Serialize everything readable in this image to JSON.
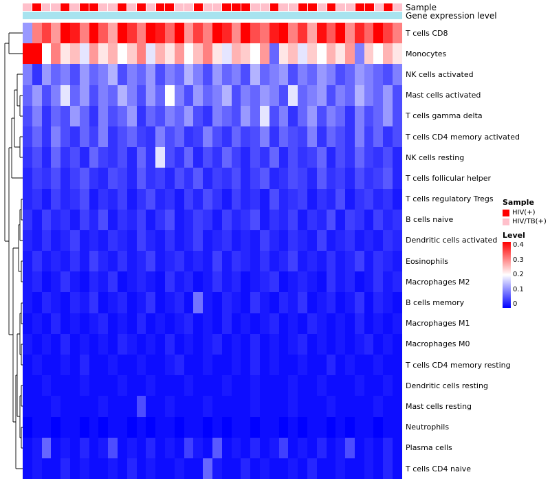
{
  "annotations": {
    "sample_label": "Sample",
    "gene_label": "Gene expression level",
    "gene_color": "#A8E3EF",
    "sample_groups": [
      "HIV/TB(+)",
      "HIV(+)",
      "HIV/TB(+)",
      "HIV/TB(+)",
      "HIV(+)",
      "HIV/TB(+)",
      "HIV(+)",
      "HIV(+)",
      "HIV/TB(+)",
      "HIV/TB(+)",
      "HIV(+)",
      "HIV/TB(+)",
      "HIV(+)",
      "HIV/TB(+)",
      "HIV(+)",
      "HIV(+)",
      "HIV/TB(+)",
      "HIV/TB(+)",
      "HIV(+)",
      "HIV/TB(+)",
      "HIV/TB(+)",
      "HIV(+)",
      "HIV(+)",
      "HIV(+)",
      "HIV/TB(+)",
      "HIV/TB(+)",
      "HIV(+)",
      "HIV/TB(+)",
      "HIV/TB(+)",
      "HIV(+)",
      "HIV(+)",
      "HIV/TB(+)",
      "HIV(+)",
      "HIV/TB(+)",
      "HIV/TB(+)",
      "HIV(+)",
      "HIV(+)",
      "HIV/TB(+)",
      "HIV(+)",
      "HIV/TB(+)"
    ]
  },
  "legend": {
    "sample_title": "Sample",
    "items": [
      {
        "label": "HIV(+)",
        "color": "#FF0000"
      },
      {
        "label": "HIV/TB(+)",
        "color": "#FFC0CB"
      }
    ],
    "level_title": "Level",
    "ticks": [
      "0.4",
      "0.3",
      "0.2",
      "0.1",
      "0"
    ]
  },
  "chart_data": {
    "type": "heatmap",
    "title": "",
    "xlabel": "",
    "ylabel": "",
    "n_columns": 40,
    "legend_position": "right",
    "grid": false,
    "colorscale": {
      "min": 0,
      "mid": 0.2,
      "max": 0.4,
      "min_color": "#0000FF",
      "mid_color": "#FFFFFF",
      "max_color": "#FF0000"
    },
    "rows": [
      "T cells CD8",
      "Monocytes",
      "NK cells activated",
      "Mast cells activated",
      "T cells gamma delta",
      "T cells CD4 memory activated",
      "NK cells resting",
      "T cells follicular helper",
      "T cells regulatory Tregs",
      "B cells naive",
      "Dendritic cells activated",
      "Eosinophils",
      "Macrophages M2",
      "B cells memory",
      "Macrophages M1",
      "Macrophages M0",
      "T cells CD4 memory resting",
      "Dendritic cells resting",
      "Mast cells resting",
      "Neutrophils",
      "Plasma cells",
      "T cells CD4 naive"
    ],
    "values": [
      [
        0.12,
        0.3,
        0.35,
        0.28,
        0.42,
        0.38,
        0.3,
        0.45,
        0.33,
        0.27,
        0.4,
        0.36,
        0.3,
        0.44,
        0.38,
        0.32,
        0.41,
        0.28,
        0.35,
        0.3,
        0.43,
        0.37,
        0.29,
        0.4,
        0.34,
        0.31,
        0.38,
        0.42,
        0.3,
        0.36,
        0.27,
        0.39,
        0.33,
        0.41,
        0.29,
        0.37,
        0.32,
        0.4,
        0.35,
        0.3
      ],
      [
        0.45,
        0.42,
        0.2,
        0.3,
        0.22,
        0.25,
        0.18,
        0.28,
        0.22,
        0.26,
        0.2,
        0.24,
        0.3,
        0.18,
        0.26,
        0.22,
        0.28,
        0.2,
        0.25,
        0.3,
        0.22,
        0.18,
        0.26,
        0.24,
        0.2,
        0.28,
        0.08,
        0.22,
        0.25,
        0.18,
        0.24,
        0.2,
        0.26,
        0.22,
        0.28,
        0.1,
        0.24,
        0.2,
        0.26,
        0.22
      ],
      [
        0.1,
        0.04,
        0.12,
        0.08,
        0.1,
        0.06,
        0.12,
        0.08,
        0.1,
        0.14,
        0.06,
        0.1,
        0.08,
        0.12,
        0.06,
        0.1,
        0.08,
        0.14,
        0.1,
        0.06,
        0.12,
        0.08,
        0.1,
        0.06,
        0.14,
        0.08,
        0.1,
        0.12,
        0.06,
        0.1,
        0.08,
        0.12,
        0.1,
        0.06,
        0.08,
        0.12,
        0.1,
        0.08,
        0.06,
        0.1
      ],
      [
        0.08,
        0.12,
        0.06,
        0.1,
        0.18,
        0.08,
        0.12,
        0.06,
        0.1,
        0.08,
        0.14,
        0.1,
        0.06,
        0.12,
        0.08,
        0.2,
        0.1,
        0.06,
        0.12,
        0.08,
        0.1,
        0.14,
        0.06,
        0.1,
        0.08,
        0.12,
        0.1,
        0.06,
        0.18,
        0.08,
        0.1,
        0.12,
        0.06,
        0.1,
        0.08,
        0.14,
        0.1,
        0.08,
        0.12,
        0.06
      ],
      [
        0.06,
        0.1,
        0.04,
        0.08,
        0.06,
        0.12,
        0.08,
        0.04,
        0.1,
        0.06,
        0.08,
        0.12,
        0.04,
        0.08,
        0.06,
        0.1,
        0.08,
        0.12,
        0.06,
        0.04,
        0.1,
        0.08,
        0.06,
        0.12,
        0.08,
        0.18,
        0.06,
        0.1,
        0.04,
        0.08,
        0.12,
        0.06,
        0.1,
        0.08,
        0.04,
        0.1,
        0.06,
        0.08,
        0.12,
        0.06
      ],
      [
        0.05,
        0.08,
        0.04,
        0.1,
        0.06,
        0.04,
        0.08,
        0.05,
        0.1,
        0.04,
        0.06,
        0.08,
        0.05,
        0.04,
        0.1,
        0.06,
        0.08,
        0.04,
        0.05,
        0.1,
        0.06,
        0.04,
        0.08,
        0.05,
        0.06,
        0.1,
        0.04,
        0.08,
        0.06,
        0.05,
        0.1,
        0.04,
        0.08,
        0.06,
        0.04,
        0.1,
        0.05,
        0.08,
        0.04,
        0.06
      ],
      [
        0.04,
        0.06,
        0.03,
        0.08,
        0.04,
        0.06,
        0.03,
        0.08,
        0.05,
        0.04,
        0.06,
        0.03,
        0.08,
        0.04,
        0.18,
        0.06,
        0.04,
        0.08,
        0.03,
        0.06,
        0.04,
        0.08,
        0.05,
        0.03,
        0.06,
        0.04,
        0.08,
        0.03,
        0.06,
        0.04,
        0.05,
        0.08,
        0.03,
        0.06,
        0.04,
        0.08,
        0.05,
        0.04,
        0.06,
        0.03
      ],
      [
        0.03,
        0.05,
        0.04,
        0.06,
        0.03,
        0.05,
        0.07,
        0.04,
        0.03,
        0.06,
        0.05,
        0.03,
        0.07,
        0.04,
        0.05,
        0.03,
        0.06,
        0.04,
        0.07,
        0.03,
        0.05,
        0.04,
        0.06,
        0.03,
        0.05,
        0.07,
        0.03,
        0.04,
        0.06,
        0.05,
        0.03,
        0.07,
        0.04,
        0.05,
        0.03,
        0.06,
        0.04,
        0.05,
        0.07,
        0.03
      ],
      [
        0.03,
        0.04,
        0.02,
        0.05,
        0.03,
        0.04,
        0.06,
        0.02,
        0.04,
        0.03,
        0.05,
        0.02,
        0.04,
        0.06,
        0.03,
        0.04,
        0.02,
        0.05,
        0.03,
        0.06,
        0.04,
        0.02,
        0.05,
        0.03,
        0.04,
        0.02,
        0.06,
        0.03,
        0.04,
        0.05,
        0.02,
        0.04,
        0.03,
        0.06,
        0.02,
        0.04,
        0.05,
        0.03,
        0.04,
        0.02
      ],
      [
        0.04,
        0.02,
        0.05,
        0.03,
        0.04,
        0.02,
        0.05,
        0.03,
        0.06,
        0.02,
        0.04,
        0.03,
        0.05,
        0.02,
        0.04,
        0.06,
        0.02,
        0.03,
        0.05,
        0.04,
        0.02,
        0.05,
        0.03,
        0.04,
        0.06,
        0.02,
        0.04,
        0.03,
        0.05,
        0.02,
        0.04,
        0.03,
        0.06,
        0.02,
        0.05,
        0.04,
        0.02,
        0.05,
        0.03,
        0.04
      ],
      [
        0.03,
        0.02,
        0.04,
        0.02,
        0.03,
        0.05,
        0.02,
        0.03,
        0.02,
        0.04,
        0.03,
        0.02,
        0.05,
        0.03,
        0.02,
        0.04,
        0.02,
        0.03,
        0.05,
        0.02,
        0.03,
        0.04,
        0.02,
        0.03,
        0.02,
        0.05,
        0.03,
        0.02,
        0.04,
        0.03,
        0.02,
        0.05,
        0.02,
        0.03,
        0.04,
        0.02,
        0.03,
        0.02,
        0.04,
        0.03
      ],
      [
        0.02,
        0.04,
        0.02,
        0.03,
        0.02,
        0.04,
        0.02,
        0.05,
        0.03,
        0.02,
        0.04,
        0.02,
        0.03,
        0.05,
        0.02,
        0.03,
        0.04,
        0.02,
        0.03,
        0.02,
        0.05,
        0.02,
        0.04,
        0.03,
        0.02,
        0.04,
        0.02,
        0.03,
        0.05,
        0.02,
        0.03,
        0.02,
        0.04,
        0.02,
        0.03,
        0.05,
        0.02,
        0.04,
        0.03,
        0.02
      ],
      [
        0.02,
        0.03,
        0.01,
        0.02,
        0.04,
        0.02,
        0.01,
        0.03,
        0.02,
        0.04,
        0.01,
        0.02,
        0.03,
        0.02,
        0.01,
        0.04,
        0.02,
        0.03,
        0.01,
        0.02,
        0.04,
        0.02,
        0.03,
        0.01,
        0.02,
        0.03,
        0.04,
        0.01,
        0.02,
        0.03,
        0.02,
        0.01,
        0.04,
        0.02,
        0.03,
        0.01,
        0.02,
        0.04,
        0.02,
        0.03
      ],
      [
        0.02,
        0.01,
        0.03,
        0.02,
        0.01,
        0.03,
        0.02,
        0.04,
        0.01,
        0.02,
        0.03,
        0.01,
        0.02,
        0.04,
        0.01,
        0.02,
        0.03,
        0.01,
        0.09,
        0.02,
        0.01,
        0.03,
        0.02,
        0.01,
        0.04,
        0.02,
        0.01,
        0.03,
        0.02,
        0.04,
        0.01,
        0.02,
        0.03,
        0.01,
        0.02,
        0.04,
        0.01,
        0.03,
        0.02,
        0.01
      ],
      [
        0.01,
        0.02,
        0.01,
        0.03,
        0.01,
        0.02,
        0.01,
        0.02,
        0.03,
        0.01,
        0.02,
        0.01,
        0.03,
        0.01,
        0.02,
        0.01,
        0.02,
        0.03,
        0.01,
        0.02,
        0.01,
        0.03,
        0.01,
        0.02,
        0.01,
        0.02,
        0.03,
        0.01,
        0.02,
        0.01,
        0.03,
        0.02,
        0.01,
        0.02,
        0.01,
        0.03,
        0.01,
        0.02,
        0.01,
        0.02
      ],
      [
        0.02,
        0.01,
        0.02,
        0.01,
        0.03,
        0.01,
        0.02,
        0.01,
        0.02,
        0.01,
        0.03,
        0.02,
        0.01,
        0.02,
        0.01,
        0.03,
        0.01,
        0.02,
        0.01,
        0.02,
        0.03,
        0.01,
        0.02,
        0.01,
        0.03,
        0.01,
        0.02,
        0.01,
        0.02,
        0.03,
        0.01,
        0.02,
        0.01,
        0.02,
        0.01,
        0.02,
        0.03,
        0.01,
        0.02,
        0.01
      ],
      [
        0.01,
        0.02,
        0.01,
        0.01,
        0.02,
        0.01,
        0.03,
        0.01,
        0.01,
        0.02,
        0.01,
        0.01,
        0.02,
        0.01,
        0.01,
        0.02,
        0.03,
        0.01,
        0.01,
        0.02,
        0.01,
        0.01,
        0.02,
        0.01,
        0.03,
        0.01,
        0.02,
        0.01,
        0.01,
        0.02,
        0.01,
        0.01,
        0.03,
        0.01,
        0.02,
        0.01,
        0.01,
        0.02,
        0.01,
        0.01
      ],
      [
        0.01,
        0.01,
        0.02,
        0.01,
        0.01,
        0.01,
        0.02,
        0.01,
        0.01,
        0.01,
        0.02,
        0.01,
        0.01,
        0.02,
        0.01,
        0.01,
        0.01,
        0.02,
        0.01,
        0.01,
        0.01,
        0.02,
        0.01,
        0.01,
        0.02,
        0.01,
        0.01,
        0.01,
        0.02,
        0.01,
        0.01,
        0.02,
        0.01,
        0.01,
        0.01,
        0.02,
        0.01,
        0.01,
        0.02,
        0.01
      ],
      [
        0.01,
        0.01,
        0.01,
        0.02,
        0.01,
        0.01,
        0.01,
        0.01,
        0.02,
        0.01,
        0.01,
        0.01,
        0.06,
        0.01,
        0.01,
        0.02,
        0.01,
        0.01,
        0.01,
        0.02,
        0.01,
        0.01,
        0.01,
        0.01,
        0.02,
        0.01,
        0.01,
        0.01,
        0.02,
        0.01,
        0.01,
        0.01,
        0.02,
        0.01,
        0.01,
        0.01,
        0.01,
        0.02,
        0.01,
        0.01
      ],
      [
        0.0,
        0.01,
        0.01,
        0.0,
        0.01,
        0.01,
        0.0,
        0.01,
        0.0,
        0.01,
        0.01,
        0.0,
        0.01,
        0.0,
        0.01,
        0.01,
        0.0,
        0.01,
        0.01,
        0.0,
        0.01,
        0.0,
        0.01,
        0.01,
        0.0,
        0.01,
        0.01,
        0.0,
        0.01,
        0.0,
        0.01,
        0.01,
        0.0,
        0.01,
        0.0,
        0.01,
        0.01,
        0.0,
        0.01,
        0.01
      ],
      [
        0.01,
        0.02,
        0.08,
        0.01,
        0.02,
        0.01,
        0.03,
        0.01,
        0.02,
        0.06,
        0.01,
        0.02,
        0.01,
        0.03,
        0.01,
        0.02,
        0.01,
        0.05,
        0.02,
        0.01,
        0.07,
        0.01,
        0.02,
        0.01,
        0.03,
        0.01,
        0.02,
        0.05,
        0.01,
        0.02,
        0.01,
        0.03,
        0.01,
        0.02,
        0.06,
        0.01,
        0.02,
        0.01,
        0.03,
        0.01
      ],
      [
        0.01,
        0.02,
        0.01,
        0.01,
        0.03,
        0.01,
        0.02,
        0.01,
        0.01,
        0.02,
        0.01,
        0.03,
        0.01,
        0.02,
        0.01,
        0.01,
        0.02,
        0.01,
        0.01,
        0.08,
        0.02,
        0.01,
        0.01,
        0.03,
        0.01,
        0.02,
        0.01,
        0.01,
        0.02,
        0.01,
        0.03,
        0.01,
        0.01,
        0.02,
        0.01,
        0.01,
        0.02,
        0.01,
        0.03,
        0.01
      ]
    ]
  }
}
